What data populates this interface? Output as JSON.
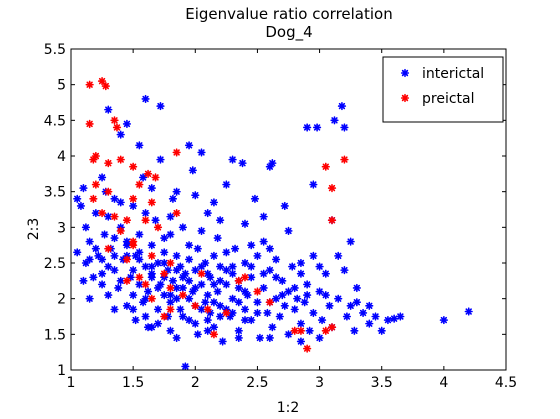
{
  "chart_data": {
    "type": "scatter",
    "title": "Eigenvalue ratio correlation",
    "subtitle": "Dog_4",
    "xlabel": "1:2",
    "ylabel": "2:3",
    "xlim": [
      1,
      4.5
    ],
    "ylim": [
      1,
      5.5
    ],
    "xticks": [
      1,
      1.5,
      2,
      2.5,
      3,
      3.5,
      4,
      4.5
    ],
    "yticks": [
      1,
      1.5,
      2,
      2.5,
      3,
      3.5,
      4,
      4.5,
      5,
      5.5
    ],
    "xtick_labels": [
      "1",
      "1.5",
      "2",
      "2.5",
      "3",
      "3.5",
      "4",
      "4.5"
    ],
    "ytick_labels": [
      "1",
      "1.5",
      "2",
      "2.5",
      "3",
      "3.5",
      "4",
      "4.5",
      "5",
      "5.5"
    ],
    "grid": false,
    "legend_position": "top-right",
    "marker": "*",
    "series": [
      {
        "name": "interictal",
        "color": "#0000ff",
        "points": [
          [
            1.05,
            3.4
          ],
          [
            1.05,
            2.65
          ],
          [
            1.08,
            3.3
          ],
          [
            1.1,
            3.55
          ],
          [
            1.12,
            3.0
          ],
          [
            1.12,
            2.5
          ],
          [
            1.15,
            2.8
          ],
          [
            1.18,
            2.3
          ],
          [
            1.2,
            3.2
          ],
          [
            1.22,
            2.6
          ],
          [
            1.25,
            2.2
          ],
          [
            1.27,
            2.9
          ],
          [
            1.28,
            3.5
          ],
          [
            1.3,
            4.65
          ],
          [
            1.3,
            2.05
          ],
          [
            1.32,
            2.7
          ],
          [
            1.35,
            3.4
          ],
          [
            1.35,
            2.4
          ],
          [
            1.38,
            2.15
          ],
          [
            1.4,
            4.3
          ],
          [
            1.4,
            3.0
          ],
          [
            1.42,
            2.55
          ],
          [
            1.45,
            1.9
          ],
          [
            1.45,
            2.8
          ],
          [
            1.48,
            2.3
          ],
          [
            1.5,
            3.3
          ],
          [
            1.5,
            2.05
          ],
          [
            1.52,
            1.7
          ],
          [
            1.52,
            2.6
          ],
          [
            1.55,
            2.9
          ],
          [
            1.55,
            2.2
          ],
          [
            1.58,
            1.95
          ],
          [
            1.58,
            3.7
          ],
          [
            1.6,
            2.45
          ],
          [
            1.6,
            4.8
          ],
          [
            1.62,
            2.1
          ],
          [
            1.62,
            1.6
          ],
          [
            1.65,
            2.75
          ],
          [
            1.65,
            2.35
          ],
          [
            1.68,
            3.1
          ],
          [
            1.7,
            1.85
          ],
          [
            1.7,
            2.5
          ],
          [
            1.72,
            4.7
          ],
          [
            1.72,
            2.2
          ],
          [
            1.75,
            2.05
          ],
          [
            1.75,
            2.65
          ],
          [
            1.78,
            1.75
          ],
          [
            1.78,
            2.4
          ],
          [
            1.8,
            2.9
          ],
          [
            1.8,
            1.55
          ],
          [
            1.82,
            2.25
          ],
          [
            1.82,
            3.4
          ],
          [
            1.85,
            2.0
          ],
          [
            1.85,
            2.6
          ],
          [
            1.88,
            1.85
          ],
          [
            1.88,
            2.45
          ],
          [
            1.9,
            2.15
          ],
          [
            1.9,
            3.0
          ],
          [
            1.92,
            1.05
          ],
          [
            1.92,
            2.35
          ],
          [
            1.95,
            1.7
          ],
          [
            1.95,
            2.55
          ],
          [
            1.98,
            2.1
          ],
          [
            1.98,
            3.8
          ],
          [
            2.0,
            1.9
          ],
          [
            2.0,
            2.4
          ],
          [
            2.02,
            2.7
          ],
          [
            2.02,
            1.5
          ],
          [
            2.05,
            2.2
          ],
          [
            2.05,
            4.05
          ],
          [
            2.08,
            1.95
          ],
          [
            2.08,
            2.5
          ],
          [
            2.1,
            2.05
          ],
          [
            2.1,
            3.2
          ],
          [
            2.12,
            1.8
          ],
          [
            2.12,
            2.3
          ],
          [
            2.15,
            2.6
          ],
          [
            2.15,
            1.6
          ],
          [
            2.18,
            2.1
          ],
          [
            2.18,
            2.85
          ],
          [
            2.2,
            1.9
          ],
          [
            2.2,
            2.45
          ],
          [
            2.22,
            1.4
          ],
          [
            2.25,
            2.2
          ],
          [
            2.25,
            3.6
          ],
          [
            2.28,
            1.75
          ],
          [
            2.3,
            2.35
          ],
          [
            2.3,
            2.0
          ],
          [
            2.32,
            2.7
          ],
          [
            2.35,
            1.55
          ],
          [
            2.35,
            2.15
          ],
          [
            2.38,
            3.9
          ],
          [
            2.4,
            1.85
          ],
          [
            2.4,
            2.5
          ],
          [
            2.42,
            2.05
          ],
          [
            2.45,
            1.7
          ],
          [
            2.45,
            2.3
          ],
          [
            2.48,
            3.4
          ],
          [
            2.5,
            1.95
          ],
          [
            2.5,
            2.6
          ],
          [
            2.52,
            1.45
          ],
          [
            2.55,
            2.15
          ],
          [
            2.55,
            2.8
          ],
          [
            2.58,
            1.8
          ],
          [
            2.6,
            2.4
          ],
          [
            2.62,
            1.6
          ],
          [
            2.62,
            3.9
          ],
          [
            2.65,
            2.0
          ],
          [
            2.65,
            2.55
          ],
          [
            2.68,
            1.75
          ],
          [
            2.7,
            2.25
          ],
          [
            2.72,
            1.9
          ],
          [
            2.72,
            3.3
          ],
          [
            2.75,
            1.5
          ],
          [
            2.75,
            2.1
          ],
          [
            2.78,
            2.45
          ],
          [
            2.8,
            1.85
          ],
          [
            2.82,
            2.0
          ],
          [
            2.85,
            1.65
          ],
          [
            2.85,
            2.35
          ],
          [
            2.88,
            1.95
          ],
          [
            2.9,
            2.2
          ],
          [
            2.92,
            1.55
          ],
          [
            2.95,
            1.8
          ],
          [
            2.98,
            4.4
          ],
          [
            3.0,
            2.1
          ],
          [
            3.02,
            1.7
          ],
          [
            3.05,
            2.35
          ],
          [
            3.08,
            1.9
          ],
          [
            3.1,
            1.6
          ],
          [
            3.12,
            4.5
          ],
          [
            3.15,
            2.0
          ],
          [
            3.18,
            4.7
          ],
          [
            3.2,
            4.4
          ],
          [
            3.2,
            2.4
          ],
          [
            3.22,
            1.75
          ],
          [
            3.25,
            1.9
          ],
          [
            3.28,
            1.55
          ],
          [
            3.3,
            2.15
          ],
          [
            3.35,
            1.8
          ],
          [
            3.4,
            1.65
          ],
          [
            3.45,
            1.75
          ],
          [
            3.5,
            1.55
          ],
          [
            3.55,
            1.7
          ],
          [
            3.65,
            1.75
          ],
          [
            4.0,
            1.7
          ],
          [
            4.2,
            1.82
          ],
          [
            2.9,
            4.4
          ],
          [
            2.95,
            3.6
          ],
          [
            2.6,
            3.85
          ],
          [
            2.3,
            3.95
          ],
          [
            1.72,
            3.95
          ],
          [
            1.55,
            4.15
          ],
          [
            1.45,
            4.45
          ],
          [
            1.95,
            4.15
          ],
          [
            1.25,
            3.7
          ],
          [
            1.65,
            3.55
          ],
          [
            2.15,
            3.35
          ],
          [
            1.85,
            3.5
          ],
          [
            2.4,
            3.05
          ],
          [
            2.55,
            3.15
          ],
          [
            2.75,
            2.95
          ],
          [
            3.1,
            3.1
          ],
          [
            3.25,
            2.8
          ],
          [
            2.95,
            2.6
          ],
          [
            3.0,
            2.45
          ],
          [
            3.15,
            2.6
          ],
          [
            1.6,
            2.0
          ],
          [
            1.7,
            2.15
          ],
          [
            1.8,
            2.05
          ],
          [
            1.9,
            2.3
          ],
          [
            2.0,
            2.15
          ],
          [
            2.1,
            2.35
          ],
          [
            2.2,
            2.25
          ],
          [
            2.3,
            2.45
          ],
          [
            2.4,
            2.1
          ],
          [
            1.5,
            2.4
          ],
          [
            1.4,
            2.25
          ],
          [
            1.3,
            2.45
          ],
          [
            1.2,
            2.7
          ],
          [
            1.15,
            2.55
          ],
          [
            1.35,
            2.85
          ],
          [
            1.45,
            2.6
          ],
          [
            1.55,
            2.55
          ],
          [
            1.65,
            2.3
          ],
          [
            1.75,
            2.5
          ],
          [
            1.85,
            2.4
          ],
          [
            1.95,
            2.25
          ],
          [
            2.05,
            2.45
          ],
          [
            2.15,
            2.2
          ],
          [
            2.25,
            2.4
          ],
          [
            2.35,
            2.25
          ],
          [
            2.45,
            2.45
          ],
          [
            2.55,
            2.35
          ],
          [
            2.65,
            2.3
          ],
          [
            2.35,
            1.95
          ],
          [
            2.25,
            1.85
          ],
          [
            2.15,
            1.95
          ],
          [
            2.05,
            1.85
          ],
          [
            1.95,
            2.0
          ],
          [
            1.85,
            2.15
          ],
          [
            1.75,
            2.3
          ],
          [
            1.65,
            2.45
          ],
          [
            1.55,
            2.65
          ],
          [
            1.45,
            2.75
          ],
          [
            1.35,
            2.6
          ],
          [
            1.25,
            2.35
          ],
          [
            1.1,
            2.25
          ],
          [
            1.15,
            2.0
          ],
          [
            1.25,
            2.55
          ],
          [
            1.5,
            1.85
          ],
          [
            1.6,
            1.75
          ],
          [
            1.7,
            1.65
          ],
          [
            1.8,
            1.95
          ],
          [
            1.9,
            1.75
          ],
          [
            2.0,
            1.65
          ],
          [
            2.1,
            1.7
          ],
          [
            2.2,
            1.75
          ],
          [
            2.3,
            1.8
          ],
          [
            2.4,
            1.7
          ],
          [
            2.5,
            1.8
          ],
          [
            2.6,
            1.95
          ],
          [
            2.7,
            2.05
          ],
          [
            2.8,
            2.15
          ],
          [
            2.9,
            2.05
          ],
          [
            3.05,
            2.05
          ],
          [
            3.3,
            1.95
          ],
          [
            3.4,
            1.9
          ],
          [
            3.6,
            1.72
          ],
          [
            2.05,
            2.95
          ],
          [
            1.75,
            2.85
          ],
          [
            1.95,
            2.75
          ],
          [
            2.25,
            2.65
          ],
          [
            2.45,
            2.75
          ],
          [
            2.6,
            2.7
          ],
          [
            2.85,
            2.5
          ],
          [
            1.3,
            3.15
          ],
          [
            1.4,
            3.35
          ],
          [
            1.6,
            3.2
          ],
          [
            1.8,
            3.15
          ],
          [
            2.0,
            3.45
          ],
          [
            2.2,
            3.1
          ],
          [
            1.35,
            1.85
          ],
          [
            1.65,
            1.6
          ],
          [
            1.85,
            1.45
          ],
          [
            2.1,
            1.55
          ],
          [
            2.35,
            1.45
          ],
          [
            2.6,
            1.45
          ],
          [
            2.85,
            1.4
          ],
          [
            3.0,
            1.45
          ]
        ]
      },
      {
        "name": "preictal",
        "color": "#ff0000",
        "points": [
          [
            1.15,
            5.0
          ],
          [
            1.25,
            5.05
          ],
          [
            1.28,
            4.98
          ],
          [
            1.15,
            4.45
          ],
          [
            1.35,
            4.5
          ],
          [
            1.37,
            4.4
          ],
          [
            1.2,
            4.0
          ],
          [
            1.18,
            3.95
          ],
          [
            1.3,
            3.9
          ],
          [
            1.4,
            3.95
          ],
          [
            1.5,
            3.85
          ],
          [
            1.62,
            3.75
          ],
          [
            1.68,
            3.7
          ],
          [
            1.55,
            3.6
          ],
          [
            1.65,
            3.35
          ],
          [
            1.5,
            3.4
          ],
          [
            1.3,
            3.5
          ],
          [
            1.18,
            3.4
          ],
          [
            1.25,
            3.2
          ],
          [
            1.35,
            3.15
          ],
          [
            1.45,
            3.1
          ],
          [
            1.6,
            3.1
          ],
          [
            1.7,
            3.0
          ],
          [
            1.4,
            2.95
          ],
          [
            1.5,
            2.75
          ],
          [
            1.3,
            2.7
          ],
          [
            1.45,
            2.55
          ],
          [
            1.65,
            2.6
          ],
          [
            1.8,
            2.5
          ],
          [
            1.55,
            2.3
          ],
          [
            1.85,
            4.05
          ],
          [
            3.2,
            3.95
          ],
          [
            3.1,
            3.55
          ],
          [
            3.05,
            3.85
          ],
          [
            3.1,
            3.1
          ],
          [
            1.6,
            2.2
          ],
          [
            1.8,
            2.15
          ],
          [
            1.75,
            2.35
          ],
          [
            1.9,
            2.05
          ],
          [
            2.0,
            1.9
          ],
          [
            2.1,
            1.85
          ],
          [
            2.25,
            1.8
          ],
          [
            2.15,
            1.5
          ],
          [
            2.4,
            2.3
          ],
          [
            2.5,
            2.1
          ],
          [
            2.6,
            1.95
          ],
          [
            2.85,
            1.55
          ],
          [
            3.05,
            1.55
          ],
          [
            2.8,
            1.55
          ],
          [
            3.1,
            1.6
          ],
          [
            2.9,
            1.3
          ],
          [
            1.45,
            2.25
          ],
          [
            1.65,
            2.0
          ],
          [
            2.35,
            2.25
          ],
          [
            1.8,
            1.85
          ],
          [
            1.5,
            2.8
          ],
          [
            1.85,
            3.2
          ],
          [
            2.05,
            2.35
          ],
          [
            1.75,
            1.75
          ],
          [
            1.2,
            3.6
          ]
        ]
      }
    ]
  }
}
